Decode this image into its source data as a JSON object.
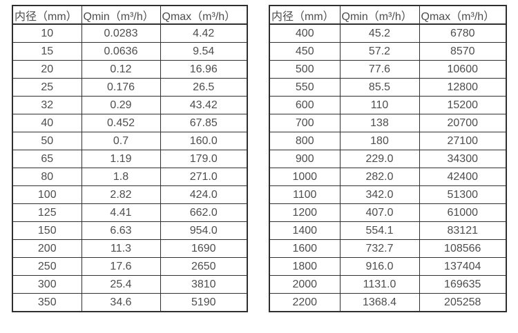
{
  "page": {
    "background": "#ffffff",
    "text_color": "#4d4d4d",
    "border_color": "#2e2e2e"
  },
  "tables": [
    {
      "name": "small-diameter-flow-table",
      "headers": [
        "内径（mm）",
        "Qmin（m³/h）",
        "Qmax（m³/h）"
      ],
      "rows": [
        [
          "10",
          "0.0283",
          "4.42"
        ],
        [
          "15",
          "0.0636",
          "9.54"
        ],
        [
          "20",
          "0.12",
          "16.96"
        ],
        [
          "25",
          "0.176",
          "26.5"
        ],
        [
          "32",
          "0.29",
          "43.42"
        ],
        [
          "40",
          "0.452",
          "67.85"
        ],
        [
          "50",
          "0.7",
          "160.0"
        ],
        [
          "65",
          "1.19",
          "179.0"
        ],
        [
          "80",
          "1.8",
          "271.0"
        ],
        [
          "100",
          "2.82",
          "424.0"
        ],
        [
          "125",
          "4.41",
          "662.0"
        ],
        [
          "150",
          "6.63",
          "954.0"
        ],
        [
          "200",
          "11.3",
          "1690"
        ],
        [
          "250",
          "17.6",
          "2650"
        ],
        [
          "300",
          "25.4",
          "3810"
        ],
        [
          "350",
          "34.6",
          "5190"
        ]
      ]
    },
    {
      "name": "large-diameter-flow-table",
      "headers": [
        "内径（mm）",
        "Qmin（m³/h）",
        "Qmax（m³/h）"
      ],
      "rows": [
        [
          "400",
          "45.2",
          "6780"
        ],
        [
          "450",
          "57.2",
          "8570"
        ],
        [
          "500",
          "77.6",
          "10600"
        ],
        [
          "550",
          "85.5",
          "12800"
        ],
        [
          "600",
          "110",
          "15200"
        ],
        [
          "700",
          "138",
          "20700"
        ],
        [
          "800",
          "180",
          "27100"
        ],
        [
          "900",
          "229.0",
          "34300"
        ],
        [
          "1000",
          "282.0",
          "42400"
        ],
        [
          "1100",
          "342.0",
          "51300"
        ],
        [
          "1200",
          "407.0",
          "61000"
        ],
        [
          "1400",
          "554.1",
          "83121"
        ],
        [
          "1600",
          "732.7",
          "108566"
        ],
        [
          "1800",
          "916.0",
          "137404"
        ],
        [
          "2000",
          "1131.0",
          "169635"
        ],
        [
          "2200",
          "1368.4",
          "205258"
        ]
      ]
    }
  ]
}
